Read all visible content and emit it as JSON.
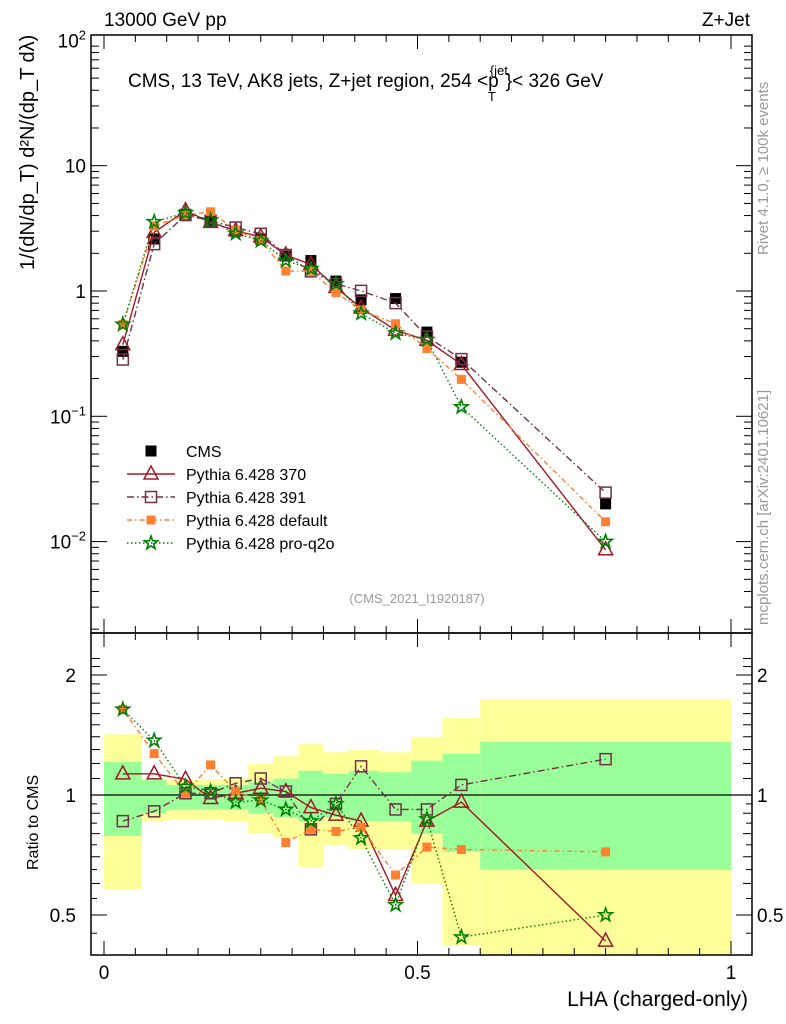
{
  "header": {
    "left": "13000 GeV pp",
    "right": "Z+Jet"
  },
  "side_texts": {
    "rivet": "Rivet 4.1.0, ≥ 100k events",
    "mcplots": "mcplots.cern.ch [arXiv:2401.10621]"
  },
  "analysis_id": "(CMS_2021_I1920187)",
  "chart_data": {
    "type": "line",
    "title": "CMS, 13 TeV, AK8 jets, Z+jet region, 254 <p_T^{jet}< 326 GeV",
    "title_parts": {
      "pre": "CMS, 13 TeV, AK8 jets, Z+jet region, 254 <p",
      "sub": "T",
      "sup": "{jet",
      "post": "}< 326 GeV"
    },
    "xlabel": "LHA (charged-only)",
    "ylabel": "1/(dN/dp_T) d²N/(dp_T dλ)",
    "ratio_ylabel": "Ratio to CMS",
    "xlim": [
      0,
      1
    ],
    "ylim": [
      0.002,
      100
    ],
    "ratio_ylim": [
      0.42,
      2.3
    ],
    "yscale": "log",
    "ratio_yscale": "log",
    "x_ticks": [
      "0",
      "0.5",
      "1"
    ],
    "x_tick_values": [
      0,
      0.5,
      1
    ],
    "y_ticks": [
      {
        "v": 100,
        "base": "10",
        "exp": "2"
      },
      {
        "v": 10,
        "base": "10",
        "exp": ""
      },
      {
        "v": 1,
        "base": "1",
        "exp": ""
      },
      {
        "v": 0.1,
        "base": "10",
        "exp": "−1"
      },
      {
        "v": 0.01,
        "base": "10",
        "exp": "−2"
      }
    ],
    "ratio_ticks": [
      {
        "v": 2,
        "label": "2"
      },
      {
        "v": 1,
        "label": "1"
      },
      {
        "v": 0.5,
        "label": "0.5"
      }
    ],
    "bin_edges": [
      0,
      0.06,
      0.1,
      0.15,
      0.19,
      0.23,
      0.27,
      0.31,
      0.35,
      0.39,
      0.44,
      0.49,
      0.54,
      0.6,
      1.0
    ],
    "x": [
      0.03,
      0.08,
      0.13,
      0.17,
      0.21,
      0.25,
      0.29,
      0.33,
      0.37,
      0.41,
      0.465,
      0.515,
      0.57,
      0.8
    ],
    "cms": {
      "name": "CMS",
      "values": [
        0.33,
        2.6,
        4.0,
        3.6,
        3.0,
        2.6,
        1.9,
        1.75,
        1.2,
        0.85,
        0.87,
        0.47,
        0.27,
        0.02
      ]
    },
    "bands": {
      "total_hi": [
        1.42,
        1.1,
        1.09,
        1.09,
        1.1,
        1.2,
        1.25,
        1.34,
        1.28,
        1.3,
        1.28,
        1.4,
        1.56,
        1.74
      ],
      "total_lo": [
        0.58,
        0.86,
        0.87,
        0.87,
        0.86,
        0.8,
        0.78,
        0.66,
        0.75,
        0.73,
        0.73,
        0.6,
        0.42,
        0.3
      ],
      "stat_hi": [
        1.21,
        1.09,
        1.06,
        1.06,
        1.06,
        1.08,
        1.1,
        1.15,
        1.13,
        1.15,
        1.14,
        1.22,
        1.27,
        1.36
      ],
      "stat_lo": [
        0.79,
        0.9,
        0.92,
        0.92,
        0.92,
        0.9,
        0.88,
        0.86,
        0.88,
        0.86,
        0.86,
        0.8,
        0.72,
        0.65
      ],
      "colors": {
        "total": "#ffff99",
        "stat": "#99ff99"
      }
    },
    "series": [
      {
        "name": "Pythia 6.428 370",
        "color": "#a01828",
        "marker": "triangle",
        "dash": "",
        "ratio": [
          1.13,
          1.13,
          1.095,
          0.98,
          1.01,
          1.04,
          1.02,
          0.93,
          0.89,
          0.86,
          0.56,
          0.86,
          0.96,
          0.43
        ]
      },
      {
        "name": "Pythia 6.428 391",
        "color": "#703048",
        "marker": "open-square",
        "dash": "7,3,1.5,3",
        "ratio": [
          0.86,
          0.91,
          1.01,
          1.01,
          1.07,
          1.1,
          1.02,
          0.82,
          0.95,
          1.18,
          0.92,
          0.92,
          1.06,
          1.23
        ]
      },
      {
        "name": "Pythia 6.428 default",
        "color": "#ff8030",
        "marker": "filled-square",
        "dash": "5,3,1.5,3",
        "ratio": [
          1.64,
          1.27,
          1.01,
          1.19,
          1.02,
          0.97,
          0.76,
          0.82,
          0.81,
          0.83,
          0.63,
          0.74,
          0.73,
          0.72
        ]
      },
      {
        "name": "Pythia 6.428 pro-q2o",
        "color": "#008000",
        "marker": "star",
        "dash": "1.5,2.5",
        "ratio": [
          1.64,
          1.37,
          1.05,
          1.02,
          0.96,
          0.97,
          0.92,
          0.86,
          0.95,
          0.78,
          0.53,
          0.87,
          0.44,
          0.5
        ]
      }
    ],
    "legend_position": "bottom-left"
  }
}
